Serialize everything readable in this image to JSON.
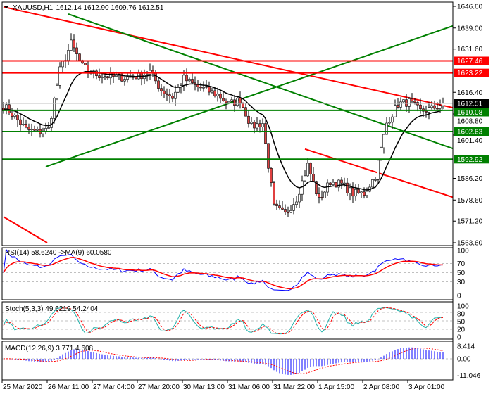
{
  "header": {
    "symbol_timeframe": "XAUUSD,H1",
    "ohlc": "1612.14 1612.90 1609.76 1612.51"
  },
  "chart_data": {
    "type": "candlestick",
    "title": "XAUUSD,H1  1612.14 1612.90 1609.76 1612.51",
    "y_ticks": [
      "1646.60",
      "1639.00",
      "1631.60",
      "1616.40",
      "1608.80",
      "1601.40",
      "1586.20",
      "1578.60",
      "1571.20",
      "1563.60"
    ],
    "ylim": [
      1563.6,
      1646.6
    ],
    "x_tick_labels": [
      "25 Mar 2020",
      "26 Mar 11:00",
      "27 Mar 04:00",
      "27 Mar 20:00",
      "30 Mar 13:00",
      "31 Mar 06:00",
      "31 Mar 22:00",
      "1 Apr 15:00",
      "2 Apr 08:00",
      "3 Apr 01:00"
    ],
    "approx_close_every_4_bars": [
      1611.8,
      1607.8,
      1603.4,
      1602.4,
      1603.4,
      1624.1,
      1633.5,
      1625.4,
      1622.9,
      1622.2,
      1621.7,
      1621.7,
      1622.2,
      1623.6,
      1617.2,
      1614.7,
      1621.2,
      1618.7,
      1617.2,
      1615.5,
      1612.3,
      1613.7,
      1604.4,
      1605.6,
      1576.0,
      1573.5,
      1579.2,
      1590.8,
      1578.4,
      1585.1,
      1584.1,
      1580.9,
      1580.9,
      1587.1,
      1605.6,
      1612.3,
      1613.0,
      1609.8,
      1610.6,
      1612.51
    ],
    "current_price": {
      "value": "1612.51",
      "color": "#000000"
    },
    "levels": [
      {
        "value": "1627.46",
        "color": "#ff0000"
      },
      {
        "value": "1623.22",
        "color": "#ff0000"
      },
      {
        "value": "1610.08",
        "color": "#008000"
      },
      {
        "value": "1602.63",
        "color": "#008000"
      },
      {
        "value": "1592.92",
        "color": "#008000"
      }
    ],
    "trendlines": [
      {
        "color": "#ff0000",
        "from": [
          0,
          1646.4
        ],
        "to": [
          160,
          1610.9
        ]
      },
      {
        "color": "#008000",
        "from": [
          23,
          1643.9
        ],
        "to": [
          160,
          1596.5
        ]
      },
      {
        "color": "#008000",
        "from": [
          15,
          1590.3
        ],
        "to": [
          160,
          1639.9
        ]
      },
      {
        "color": "#ff0000",
        "from": [
          107,
          1596.5
        ],
        "to": [
          160,
          1579.4
        ]
      },
      {
        "color": "#ff0000",
        "from": [
          0,
          1572.7
        ],
        "to": [
          15.5,
          1563.6
        ]
      }
    ],
    "moving_average_color": "#000000",
    "indicators": {
      "rsi": {
        "label": "RSI(14) 58.6240  ->MA(9) 60.0580",
        "levels": [
          "100",
          "70",
          "50",
          "30",
          "0"
        ],
        "line_color": "#0000ff",
        "ma_color": "#ff0000"
      },
      "stoch": {
        "label": "Stoch(5,3,3) 49.6219 54.2404",
        "levels": [
          "100",
          "80",
          "50",
          "20",
          "0"
        ],
        "main_color": "#20b2aa",
        "signal_color": "#ff0000"
      },
      "macd": {
        "label": "MACD(12,26,9) 3.771 4.608",
        "levels": [
          "8.414",
          "0.00",
          "-11.046"
        ],
        "hist_color": "#0000ff",
        "signal_color": "#ff0000"
      }
    }
  }
}
